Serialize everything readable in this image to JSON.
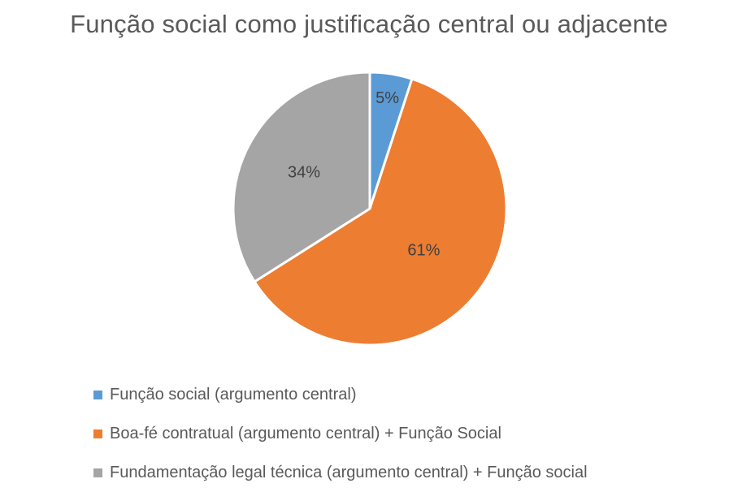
{
  "chart_data": {
    "type": "pie",
    "title": "Função social como justificação central ou adjacente",
    "categories": [
      "Função social (argumento central)",
      "Boa-fé contratual (argumento central) + Função Social",
      "Fundamentação legal técnica (argumento central) + Função social"
    ],
    "values": [
      5,
      61,
      34
    ],
    "data_labels": [
      "5%",
      "61%",
      "34%"
    ],
    "colors": [
      "#5B9BD5",
      "#ED7D31",
      "#A5A5A5"
    ],
    "legend_position": "bottom-left"
  }
}
